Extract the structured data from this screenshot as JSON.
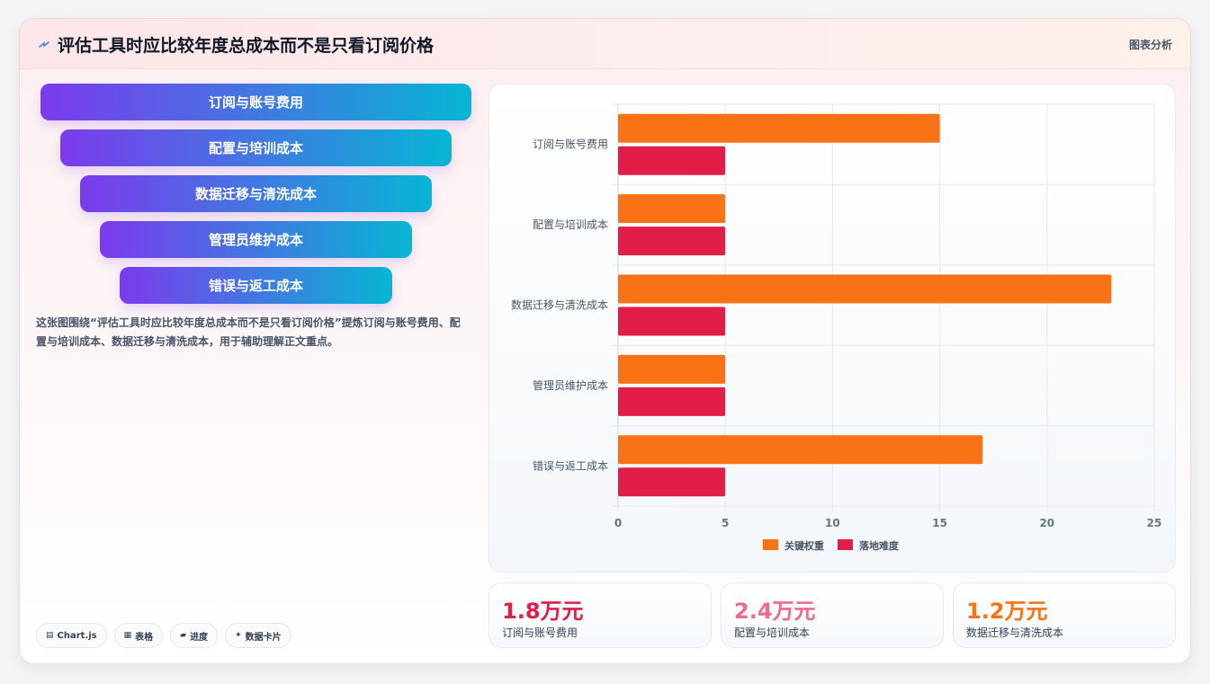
{
  "header": {
    "title": "评估工具时应比较年度总成本而不是只看订阅价格",
    "tag": "图表分析",
    "icon": "lightning-icon"
  },
  "funnel": [
    "订阅与账号费用",
    "配置与培训成本",
    "数据迁移与清洗成本",
    "管理员维护成本",
    "错误与返工成本"
  ],
  "description": "这张图围绕“评估工具时应比较年度总成本而不是只看订阅价格”提炼订阅与账号费用、配置与培训成本、数据迁移与清洗成本，用于辅助理解正文重点。",
  "chips": [
    {
      "icon": "▤",
      "label": "Chart.js"
    },
    {
      "icon": "▦",
      "label": "表格"
    },
    {
      "icon": "▰",
      "label": "进度"
    },
    {
      "icon": "✦",
      "label": "数据卡片"
    }
  ],
  "chart_data": {
    "type": "bar",
    "orientation": "horizontal",
    "categories": [
      "订阅与账号费用",
      "配置与培训成本",
      "数据迁移与清洗成本",
      "管理员维护成本",
      "错误与返工成本"
    ],
    "series": [
      {
        "name": "关键权重",
        "values": [
          15,
          5,
          23,
          5,
          17
        ],
        "color": "#f97316"
      },
      {
        "name": "落地难度",
        "values": [
          5,
          5,
          5,
          5,
          5
        ],
        "color": "#e11d48"
      }
    ],
    "xlim": [
      0,
      25
    ],
    "xticks": [
      "0",
      "5",
      "10",
      "15",
      "20",
      "25"
    ],
    "grid": true,
    "legend": "bottom"
  },
  "stats": [
    {
      "value": "1.8万元",
      "label": "订阅与账号费用",
      "color": "#e11d48"
    },
    {
      "value": "2.4万元",
      "label": "配置与培训成本",
      "color": "#f06a8a"
    },
    {
      "value": "1.2万元",
      "label": "数据迁移与清洗成本",
      "color": "#f97316"
    }
  ]
}
